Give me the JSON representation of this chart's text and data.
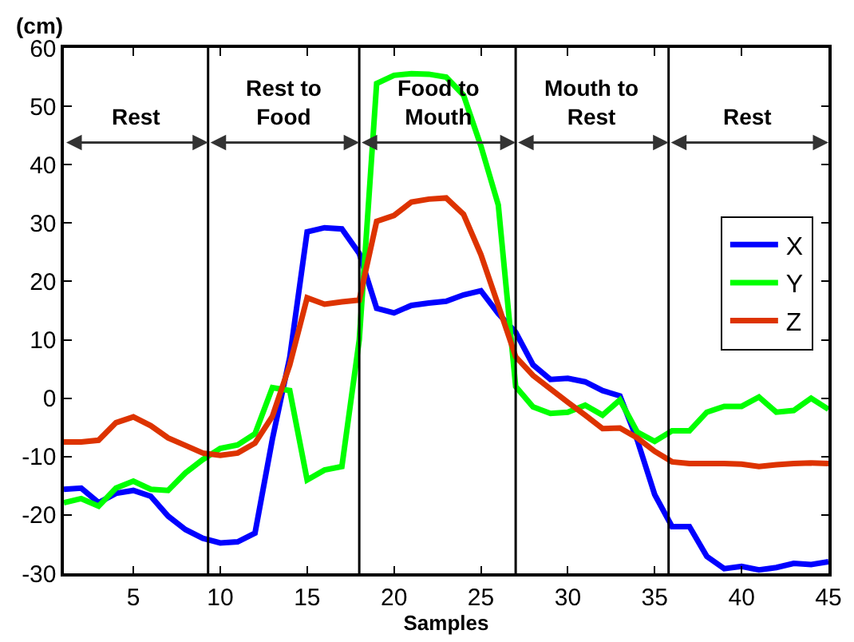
{
  "chart_data": {
    "type": "line",
    "xlabel": "Samples",
    "ylabel": "(cm)",
    "x": [
      1,
      2,
      3,
      4,
      5,
      6,
      7,
      8,
      9,
      10,
      11,
      12,
      13,
      14,
      15,
      16,
      17,
      18,
      19,
      20,
      21,
      22,
      23,
      24,
      25,
      26,
      27,
      28,
      29,
      30,
      31,
      32,
      33,
      34,
      35,
      36,
      37,
      38,
      39,
      40,
      41,
      42,
      43,
      44,
      45
    ],
    "series": [
      {
        "name": "X",
        "color": "#0000ff",
        "values": [
          -15.6,
          -15.4,
          -17.9,
          -16.3,
          -15.8,
          -16.8,
          -20.2,
          -22.5,
          -24,
          -24.8,
          -24.6,
          -23.1,
          -7,
          7,
          28.5,
          29.2,
          29,
          24.8,
          15.4,
          14.6,
          15.9,
          16.3,
          16.6,
          17.7,
          18.4,
          14.5,
          11.3,
          5.7,
          3.2,
          3.4,
          2.8,
          1.3,
          0.4,
          -7.2,
          -16.5,
          -22,
          -22,
          -27.1,
          -29.2,
          -28.8,
          -29.4,
          -29,
          -28.3,
          -28.5,
          -28
        ]
      },
      {
        "name": "Y",
        "color": "#00ff00",
        "values": [
          -17.9,
          -17.2,
          -18.5,
          -15.4,
          -14.2,
          -15.6,
          -15.8,
          -12.8,
          -10.5,
          -8.6,
          -8,
          -6.1,
          1.8,
          1.3,
          -14,
          -12.3,
          -11.7,
          10,
          53.9,
          55.3,
          55.6,
          55.5,
          55,
          51.9,
          43.2,
          33.1,
          2,
          -1.5,
          -2.6,
          -2.4,
          -1.2,
          -2.9,
          -0.3,
          -5.8,
          -7.4,
          -5.6,
          -5.6,
          -2.4,
          -1.4,
          -1.4,
          0.2,
          -2.4,
          -2.1,
          0,
          -1.9
        ]
      },
      {
        "name": "Z",
        "color": "#dd3300",
        "values": [
          -7.5,
          -7.5,
          -7.2,
          -4.2,
          -3.2,
          -4.7,
          -6.8,
          -8.1,
          -9.4,
          -9.8,
          -9.4,
          -7.7,
          -3.1,
          5.7,
          17.2,
          16.1,
          16.5,
          16.8,
          30.3,
          31.3,
          33.6,
          34.1,
          34.3,
          31.5,
          24.6,
          15.9,
          7.1,
          3.9,
          1.6,
          -0.7,
          -2.9,
          -5.2,
          -5.1,
          -6.8,
          -9.1,
          -10.9,
          -11.2,
          -11.2,
          -11.2,
          -11.3,
          -11.7,
          -11.4,
          -11.2,
          -11.1,
          -11.2
        ]
      }
    ],
    "xlim": [
      1,
      45
    ],
    "xticks": [
      5,
      10,
      15,
      20,
      25,
      30,
      35,
      40,
      45
    ],
    "ylim": [
      -30,
      60
    ],
    "yticks": [
      -30,
      -20,
      -10,
      0,
      10,
      20,
      30,
      40,
      50,
      60
    ],
    "ref_lines": [
      {
        "axis": "x",
        "value": 9.3,
        "color": "#000000"
      },
      {
        "axis": "x",
        "value": 18,
        "color": "#000000"
      },
      {
        "axis": "x",
        "value": 27,
        "color": "#000000"
      },
      {
        "axis": "x",
        "value": 35.8,
        "color": "#000000"
      }
    ],
    "annotations": [
      "Rest",
      "Rest to\nFood",
      "Food to\nMouth",
      "Mouth to\nRest",
      "Rest"
    ],
    "legend": "right",
    "line_style": "solid",
    "marker": "none"
  }
}
